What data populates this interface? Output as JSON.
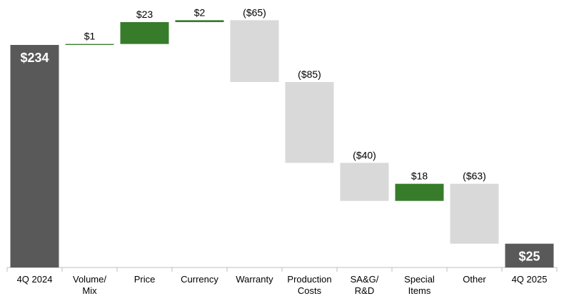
{
  "chart_data": {
    "type": "waterfall",
    "categories": [
      "4Q 2024",
      "Volume/\nMix",
      "Price",
      "Currency",
      "Warranty",
      "Production\nCosts",
      "SA&G/\nR&D",
      "Special\nItems",
      "Other",
      "4Q 2025"
    ],
    "values": [
      234,
      1,
      23,
      2,
      -65,
      -85,
      -40,
      18,
      -63,
      25
    ],
    "value_labels": [
      "$234",
      "$1",
      "$23",
      "$2",
      "($65)",
      "($85)",
      "($40)",
      "$18",
      "($63)",
      "$25"
    ],
    "total_color": "#595959",
    "increase_color": "#367c2b",
    "decrease_color": "#d9d9d9"
  }
}
